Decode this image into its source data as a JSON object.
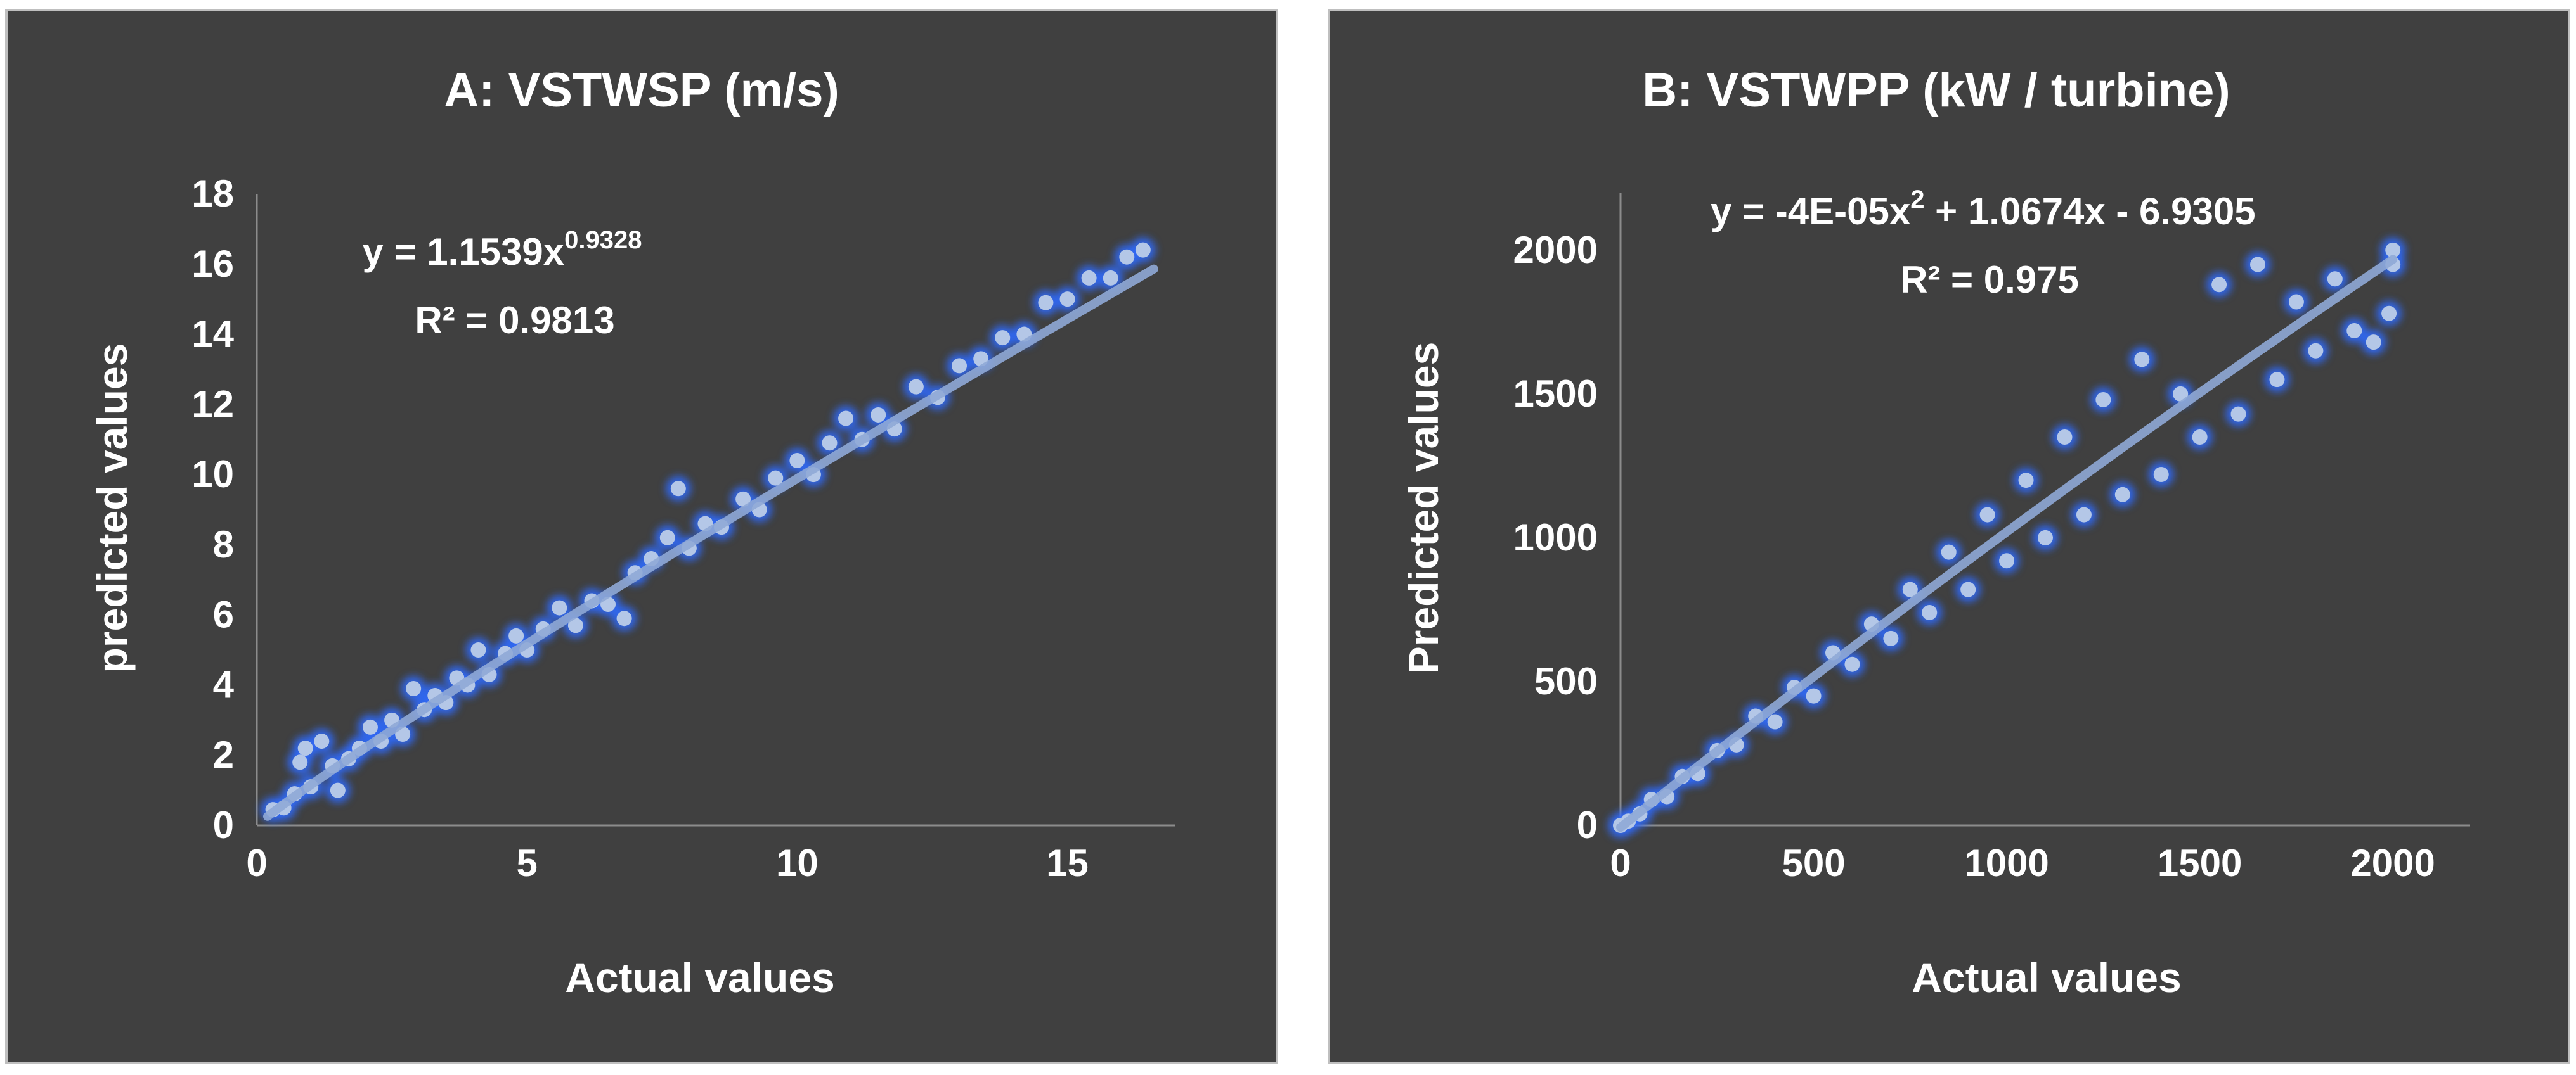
{
  "chart_data": [
    {
      "type": "scatter",
      "title": "A: VSTWSP (m/s)",
      "xlabel": "Actual values",
      "ylabel": "predicted values",
      "xlim": [
        0,
        17
      ],
      "ylim": [
        0,
        18
      ],
      "x_ticks": [
        "0",
        "5",
        "10",
        "15"
      ],
      "y_ticks": [
        "0",
        "2",
        "4",
        "6",
        "8",
        "10",
        "12",
        "14",
        "16",
        "18"
      ],
      "grid": false,
      "trendline": {
        "kind": "power",
        "coef": 1.1539,
        "exponent": 0.9328,
        "equation_lead": "y = 1.1539x",
        "equation_sup": "0.9328",
        "r2_text": "R² = 0.9813"
      },
      "point_color": "#b4c7e7",
      "glow_color": "#2e6bff",
      "trend_color": "#8fa9d6",
      "points": [
        [
          0.3,
          0.45
        ],
        [
          0.5,
          0.5
        ],
        [
          0.7,
          0.9
        ],
        [
          0.8,
          1.8
        ],
        [
          0.9,
          2.2
        ],
        [
          1.0,
          1.1
        ],
        [
          1.2,
          2.4
        ],
        [
          1.4,
          1.7
        ],
        [
          1.5,
          1.0
        ],
        [
          1.7,
          1.9
        ],
        [
          1.9,
          2.2
        ],
        [
          2.1,
          2.8
        ],
        [
          2.3,
          2.4
        ],
        [
          2.5,
          3.0
        ],
        [
          2.7,
          2.6
        ],
        [
          2.9,
          3.9
        ],
        [
          3.1,
          3.3
        ],
        [
          3.3,
          3.7
        ],
        [
          3.5,
          3.5
        ],
        [
          3.7,
          4.2
        ],
        [
          3.9,
          4.0
        ],
        [
          4.1,
          5.0
        ],
        [
          4.3,
          4.3
        ],
        [
          4.6,
          4.9
        ],
        [
          4.8,
          5.4
        ],
        [
          5.0,
          5.0
        ],
        [
          5.3,
          5.6
        ],
        [
          5.6,
          6.2
        ],
        [
          5.9,
          5.7
        ],
        [
          6.2,
          6.4
        ],
        [
          6.5,
          6.3
        ],
        [
          6.8,
          5.9
        ],
        [
          7.0,
          7.2
        ],
        [
          7.3,
          7.6
        ],
        [
          7.6,
          8.2
        ],
        [
          7.8,
          9.6
        ],
        [
          8.0,
          7.9
        ],
        [
          8.3,
          8.6
        ],
        [
          8.6,
          8.5
        ],
        [
          9.0,
          9.3
        ],
        [
          9.3,
          9.0
        ],
        [
          9.6,
          9.9
        ],
        [
          10.0,
          10.4
        ],
        [
          10.3,
          10.0
        ],
        [
          10.6,
          10.9
        ],
        [
          10.9,
          11.6
        ],
        [
          11.2,
          11.0
        ],
        [
          11.5,
          11.7
        ],
        [
          11.8,
          11.3
        ],
        [
          12.2,
          12.5
        ],
        [
          12.6,
          12.2
        ],
        [
          13.0,
          13.1
        ],
        [
          13.4,
          13.3
        ],
        [
          13.8,
          13.9
        ],
        [
          14.2,
          14.0
        ],
        [
          14.6,
          14.9
        ],
        [
          15.0,
          15.0
        ],
        [
          15.4,
          15.6
        ],
        [
          15.8,
          15.6
        ],
        [
          16.1,
          16.2
        ],
        [
          16.4,
          16.4
        ]
      ]
    },
    {
      "type": "scatter",
      "title": "B: VSTWPP (kW / turbine)",
      "xlabel": "Actual values",
      "ylabel": "Predicted values",
      "xlim": [
        0,
        2200
      ],
      "ylim": [
        0,
        2200
      ],
      "x_ticks": [
        "0",
        "500",
        "1000",
        "1500",
        "2000"
      ],
      "y_ticks": [
        "0",
        "500",
        "1000",
        "1500",
        "2000"
      ],
      "grid": false,
      "trendline": {
        "kind": "polynomial",
        "a2": -4e-05,
        "a1": 1.0674,
        "a0": -6.9305,
        "equation_lead": "y = -4E-05x",
        "equation_sup": "2",
        "equation_tail": " + 1.0674x - 6.9305",
        "r2_text": "R² = 0.975"
      },
      "point_color": "#b4c7e7",
      "glow_color": "#2e6bff",
      "trend_color": "#8fa9d6",
      "points": [
        [
          0,
          0
        ],
        [
          20,
          15
        ],
        [
          50,
          40
        ],
        [
          80,
          90
        ],
        [
          120,
          100
        ],
        [
          160,
          170
        ],
        [
          200,
          180
        ],
        [
          250,
          260
        ],
        [
          300,
          280
        ],
        [
          350,
          380
        ],
        [
          400,
          360
        ],
        [
          450,
          480
        ],
        [
          500,
          450
        ],
        [
          550,
          600
        ],
        [
          600,
          560
        ],
        [
          650,
          700
        ],
        [
          700,
          650
        ],
        [
          750,
          820
        ],
        [
          800,
          740
        ],
        [
          850,
          950
        ],
        [
          900,
          820
        ],
        [
          950,
          1080
        ],
        [
          1000,
          920
        ],
        [
          1050,
          1200
        ],
        [
          1100,
          1000
        ],
        [
          1150,
          1350
        ],
        [
          1200,
          1080
        ],
        [
          1250,
          1480
        ],
        [
          1300,
          1150
        ],
        [
          1350,
          1620
        ],
        [
          1400,
          1220
        ],
        [
          1450,
          1500
        ],
        [
          1500,
          1350
        ],
        [
          1550,
          1880
        ],
        [
          1600,
          1430
        ],
        [
          1650,
          1950
        ],
        [
          1700,
          1550
        ],
        [
          1750,
          1820
        ],
        [
          1800,
          1650
        ],
        [
          1850,
          1900
        ],
        [
          1900,
          1720
        ],
        [
          1950,
          1680
        ],
        [
          1990,
          1780
        ],
        [
          2000,
          2000
        ],
        [
          2000,
          1950
        ]
      ]
    }
  ]
}
